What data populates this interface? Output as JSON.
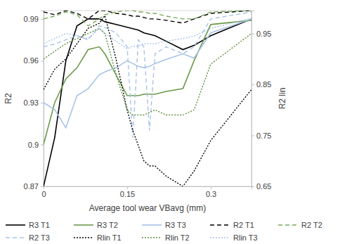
{
  "chart_data": {
    "type": "line",
    "x_label": "Average tool wear VBavg (mm)",
    "y_label": "R2",
    "y2_label": "R2 lin",
    "x": [
      0,
      0.02,
      0.04,
      0.06,
      0.08,
      0.1,
      0.11,
      0.13,
      0.15,
      0.16,
      0.17,
      0.18,
      0.19,
      0.2,
      0.22,
      0.25,
      0.27,
      0.3,
      0.373
    ],
    "xlim": [
      0,
      0.373
    ],
    "xticks": [
      0,
      0.15,
      0.3
    ],
    "ylim": [
      0.87,
      0.996
    ],
    "yticks": [
      0.87,
      0.9,
      0.93,
      0.96,
      0.99
    ],
    "y2lim": [
      0.65,
      0.995
    ],
    "y2ticks": [
      0.65,
      0.75,
      0.85,
      0.95
    ],
    "grid": false,
    "legend": "bottom",
    "series": [
      {
        "name": "R3 T1",
        "color": "#000000",
        "line_style": "solid",
        "values": [
          0.87,
          0.905,
          0.96,
          0.985,
          0.99,
          0.99,
          0.988,
          0.986,
          0.984,
          0.983,
          0.982,
          0.98,
          0.979,
          0.978,
          0.974,
          0.968,
          0.971,
          0.978,
          0.99
        ]
      },
      {
        "name": "R3 T2",
        "color": "#6b9a4b",
        "line_style": "solid",
        "values": [
          0.9,
          0.93,
          0.947,
          0.955,
          0.968,
          0.97,
          0.965,
          0.95,
          0.935,
          0.935,
          0.935,
          0.936,
          0.936,
          0.936,
          0.938,
          0.94,
          0.96,
          0.986,
          0.989
        ]
      },
      {
        "name": "R3 T3",
        "color": "#a8c3e6",
        "line_style": "solid",
        "values": [
          0.93,
          0.925,
          0.912,
          0.935,
          0.94,
          0.95,
          0.952,
          0.955,
          0.96,
          0.958,
          0.956,
          0.955,
          0.956,
          0.958,
          0.961,
          0.965,
          0.962,
          0.98,
          0.99
        ]
      },
      {
        "name": "R2 T1",
        "color": "#000000",
        "line_style": "dashed",
        "values": [
          0.995,
          0.993,
          0.996,
          0.994,
          0.99,
          0.996,
          0.996,
          0.994,
          0.993,
          0.992,
          0.992,
          0.991,
          0.99,
          0.99,
          0.989,
          0.987,
          0.99,
          0.994,
          0.996
        ]
      },
      {
        "name": "R2 T2",
        "color": "#7aa95a",
        "line_style": "dashed",
        "values": [
          0.99,
          0.992,
          0.995,
          0.993,
          0.985,
          0.99,
          0.993,
          0.995,
          0.996,
          0.996,
          0.995,
          0.995,
          0.994,
          0.994,
          0.992,
          0.99,
          0.99,
          0.995,
          0.996
        ]
      },
      {
        "name": "R2 T3",
        "color": "#a8c3e6",
        "line_style": "dashed",
        "values": [
          0.97,
          0.972,
          0.975,
          0.978,
          0.975,
          0.985,
          0.984,
          0.98,
          0.97,
          0.905,
          0.975,
          0.97,
          0.91,
          0.965,
          0.97,
          0.965,
          0.97,
          0.99,
          0.995
        ]
      },
      {
        "name": "Rlin T1",
        "color": "#000000",
        "line_style": "dotted",
        "axis": "y2",
        "values": [
          0.84,
          0.88,
          0.9,
          0.93,
          0.96,
          0.97,
          0.985,
          0.9,
          0.8,
          0.76,
          0.73,
          0.7,
          0.69,
          0.69,
          0.67,
          0.65,
          0.68,
          0.74,
          0.84
        ]
      },
      {
        "name": "Rlin T2",
        "color": "#5e8f3c",
        "line_style": "dotted",
        "axis": "y2",
        "values": [
          0.9,
          0.915,
          0.93,
          0.94,
          0.95,
          0.96,
          0.95,
          0.87,
          0.8,
          0.79,
          0.79,
          0.79,
          0.795,
          0.8,
          0.79,
          0.79,
          0.8,
          0.89,
          0.95
        ]
      },
      {
        "name": "Rlin T3",
        "color": "#a8c3e6",
        "line_style": "dotted",
        "axis": "y2",
        "values": [
          0.93,
          0.94,
          0.95,
          0.945,
          0.94,
          0.96,
          0.95,
          0.935,
          0.92,
          0.925,
          0.925,
          0.93,
          0.93,
          0.93,
          0.935,
          0.94,
          0.945,
          0.96,
          0.98
        ]
      }
    ]
  }
}
